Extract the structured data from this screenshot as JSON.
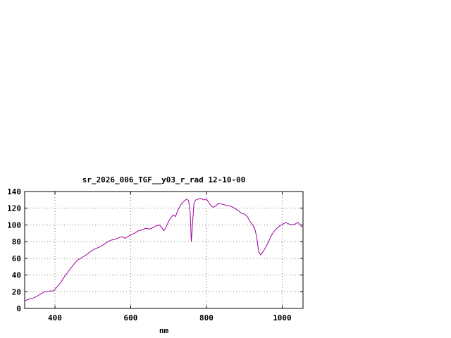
{
  "chart_data": {
    "type": "line",
    "title": "sr_2026_006_TGF__y03_r_rad 12-10-00",
    "xlabel": "nm",
    "ylabel": "",
    "xlim": [
      320,
      1055
    ],
    "ylim": [
      0,
      140
    ],
    "xticks": [
      400,
      600,
      800,
      1000
    ],
    "yticks": [
      0,
      20,
      40,
      60,
      80,
      100,
      120,
      140
    ],
    "grid": true,
    "legend": "none",
    "line_color": "#a000a0",
    "series": [
      {
        "name": "sr_2026_006_TGF__y03_r_rad",
        "x": [
          320,
          330,
          340,
          350,
          358,
          365,
          372,
          380,
          388,
          395,
          400,
          408,
          415,
          422,
          430,
          438,
          445,
          452,
          460,
          468,
          475,
          482,
          490,
          500,
          510,
          520,
          530,
          540,
          550,
          560,
          570,
          578,
          585,
          592,
          600,
          610,
          620,
          630,
          640,
          650,
          660,
          668,
          675,
          682,
          687,
          692,
          700,
          705,
          712,
          718,
          725,
          732,
          740,
          748,
          753,
          757,
          760,
          763,
          767,
          772,
          778,
          785,
          792,
          800,
          806,
          812,
          818,
          825,
          832,
          840,
          848,
          855,
          862,
          870,
          878,
          885,
          892,
          900,
          908,
          915,
          922,
          928,
          933,
          938,
          943,
          948,
          955,
          962,
          970,
          978,
          986,
          994,
          1002,
          1010,
          1018,
          1026,
          1034,
          1042,
          1048,
          1052
        ],
        "y": [
          9,
          11,
          12,
          14,
          16,
          18,
          20,
          20,
          21,
          21,
          23,
          27,
          31,
          36,
          41,
          46,
          50,
          54,
          58,
          60,
          62,
          64,
          67,
          70,
          72,
          74,
          77,
          80,
          82,
          83,
          85,
          86,
          84,
          86,
          88,
          90,
          93,
          94,
          96,
          95,
          97,
          99,
          100,
          97,
          93,
          96,
          104,
          108,
          112,
          110,
          118,
          124,
          128,
          131,
          129,
          115,
          80,
          100,
          126,
          130,
          131,
          132,
          130,
          131,
          127,
          123,
          121,
          123,
          126,
          125,
          124,
          123,
          123,
          121,
          119,
          117,
          114,
          113,
          110,
          104,
          100,
          95,
          85,
          68,
          64,
          67,
          72,
          78,
          86,
          92,
          96,
          99,
          101,
          103,
          101,
          100,
          101,
          103,
          100,
          97
        ]
      }
    ]
  }
}
